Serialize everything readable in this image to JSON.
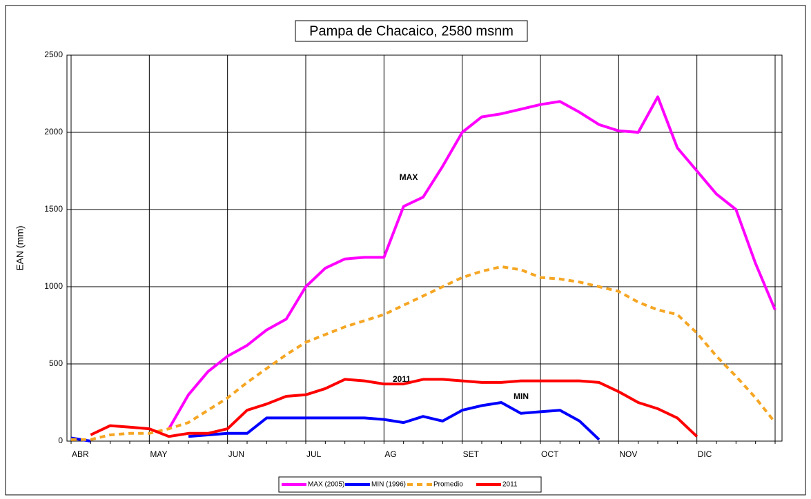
{
  "chart_data": {
    "type": "line",
    "title": "Pampa de Chacaico, 2580 msnm",
    "y_label": "EAN (mm)",
    "annotations": [
      "MAX",
      "2011",
      "MIN"
    ],
    "categories": [
      "ABR",
      null,
      null,
      null,
      "MAY",
      null,
      null,
      null,
      "JUN",
      null,
      null,
      null,
      "JUL",
      null,
      null,
      null,
      "AG",
      null,
      null,
      null,
      "SET",
      null,
      null,
      null,
      "OCT",
      null,
      null,
      null,
      "NOV",
      null,
      null,
      null,
      "DIC",
      null,
      null,
      null,
      null
    ],
    "ylim": [
      0,
      2500
    ],
    "yticks": [
      0,
      500,
      1000,
      1500,
      2000,
      2500
    ],
    "grid": true,
    "series": [
      {
        "name": "MAX (2005)",
        "color": "#ff00ff",
        "dash": false,
        "values": [
          null,
          null,
          null,
          null,
          null,
          80,
          300,
          450,
          550,
          620,
          720,
          790,
          1000,
          1120,
          1180,
          1190,
          1190,
          1520,
          1580,
          1780,
          2000,
          2100,
          2120,
          2150,
          2180,
          2200,
          2130,
          2050,
          2010,
          2000,
          2230,
          1900,
          1750,
          1600,
          1500,
          1150,
          850
        ]
      },
      {
        "name": "MIN (1996)",
        "color": "#0000ff",
        "dash": false,
        "values": [
          20,
          0,
          null,
          null,
          null,
          null,
          30,
          40,
          50,
          50,
          150,
          150,
          150,
          150,
          150,
          150,
          140,
          120,
          160,
          130,
          200,
          230,
          250,
          180,
          190,
          200,
          130,
          10,
          null,
          null,
          null,
          null,
          null,
          null,
          null,
          null,
          null
        ]
      },
      {
        "name": "Promedio",
        "color": "#f5a623",
        "dash": true,
        "values": [
          10,
          10,
          40,
          50,
          50,
          80,
          120,
          200,
          280,
          380,
          470,
          560,
          640,
          690,
          740,
          780,
          820,
          880,
          940,
          1000,
          1060,
          1100,
          1130,
          1110,
          1060,
          1050,
          1030,
          1000,
          970,
          900,
          850,
          820,
          700,
          550,
          420,
          280,
          120
        ]
      },
      {
        "name": "2011",
        "color": "#ff0000",
        "dash": false,
        "values": [
          null,
          40,
          100,
          90,
          80,
          30,
          50,
          50,
          80,
          200,
          240,
          290,
          300,
          340,
          400,
          390,
          370,
          370,
          400,
          400,
          390,
          380,
          380,
          390,
          390,
          390,
          390,
          380,
          320,
          250,
          210,
          150,
          30,
          null,
          null,
          null,
          null
        ]
      }
    ]
  }
}
